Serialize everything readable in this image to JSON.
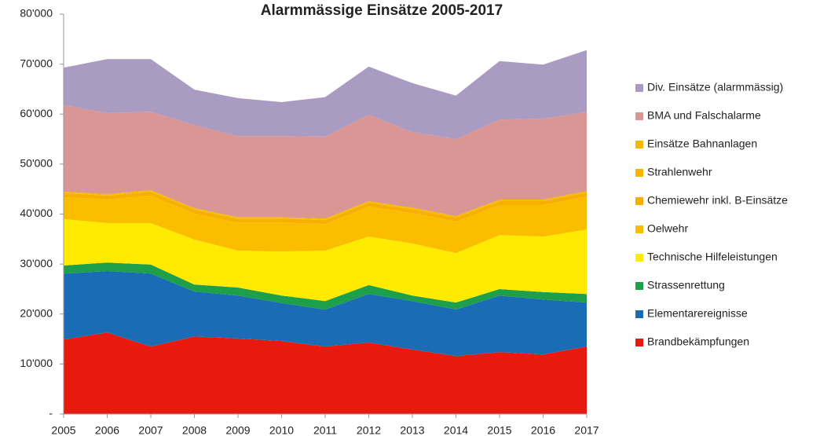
{
  "chart_data": {
    "type": "stacked_area",
    "title": "Alarmmässige Einsätze 2005-2017",
    "categories": [
      "2005",
      "2006",
      "2007",
      "2008",
      "2009",
      "2010",
      "2011",
      "2012",
      "2013",
      "2014",
      "2015",
      "2016",
      "2017"
    ],
    "ylim": [
      0,
      80000
    ],
    "yticks": [
      {
        "value": 0,
        "label": "-"
      },
      {
        "value": 10000,
        "label": "10'000"
      },
      {
        "value": 20000,
        "label": "20'000"
      },
      {
        "value": 30000,
        "label": "30'000"
      },
      {
        "value": 40000,
        "label": "40'000"
      },
      {
        "value": 50000,
        "label": "50'000"
      },
      {
        "value": 60000,
        "label": "60'000"
      },
      {
        "value": 70000,
        "label": "70'000"
      },
      {
        "value": 80000,
        "label": "80'000"
      }
    ],
    "grid": false,
    "series": [
      {
        "name": "Brandbekämpfungen",
        "color": "#e8190e",
        "values": [
          14900,
          16300,
          13500,
          15500,
          15100,
          14600,
          13500,
          14300,
          12900,
          11600,
          12400,
          11900,
          13500
        ]
      },
      {
        "name": "Elementarereignisse",
        "color": "#1a6db5",
        "values": [
          13200,
          12300,
          14600,
          9000,
          8600,
          7600,
          7400,
          9700,
          9700,
          9300,
          11300,
          11000,
          8800
        ]
      },
      {
        "name": "Strassenrettung",
        "color": "#1e9f4a",
        "values": [
          1600,
          1700,
          1800,
          1400,
          1600,
          1500,
          1700,
          1800,
          1100,
          1400,
          1300,
          1500,
          1700
        ]
      },
      {
        "name": "Technische Hilfeleistungen",
        "color": "#ffea00",
        "values": [
          9300,
          7900,
          8300,
          9000,
          7400,
          8800,
          10100,
          9700,
          10400,
          9900,
          10800,
          11100,
          12900
        ]
      },
      {
        "name": "Oelwehr",
        "color": "#fbbd00",
        "values": [
          4400,
          4700,
          5500,
          5200,
          5600,
          5800,
          5300,
          6000,
          6100,
          6300,
          6000,
          6300,
          6600
        ]
      },
      {
        "name": "Chemiewehr inkl. B-Einsätze",
        "color": "#f6b100",
        "values": [
          800,
          800,
          800,
          800,
          800,
          800,
          800,
          800,
          800,
          800,
          800,
          800,
          800
        ]
      },
      {
        "name": "Strahlenwehr",
        "color": "#f9b400",
        "values": [
          50,
          50,
          50,
          50,
          50,
          50,
          50,
          50,
          50,
          50,
          50,
          50,
          50
        ]
      },
      {
        "name": "Einsätze Bahnanlagen",
        "color": "#f4b800",
        "values": [
          250,
          250,
          250,
          250,
          250,
          250,
          250,
          250,
          250,
          250,
          250,
          250,
          250
        ]
      },
      {
        "name": "BMA und Falschalarme",
        "color": "#d99694",
        "values": [
          17300,
          16200,
          15700,
          16600,
          16200,
          16200,
          16400,
          17300,
          15100,
          15400,
          16000,
          16200,
          15800
        ]
      },
      {
        "name": "Div. Einsätze (alarmmässig)",
        "color": "#a99bc1",
        "values": [
          7500,
          10800,
          10500,
          7100,
          7600,
          6800,
          7900,
          9600,
          9800,
          8700,
          11700,
          10800,
          12400
        ]
      }
    ]
  }
}
